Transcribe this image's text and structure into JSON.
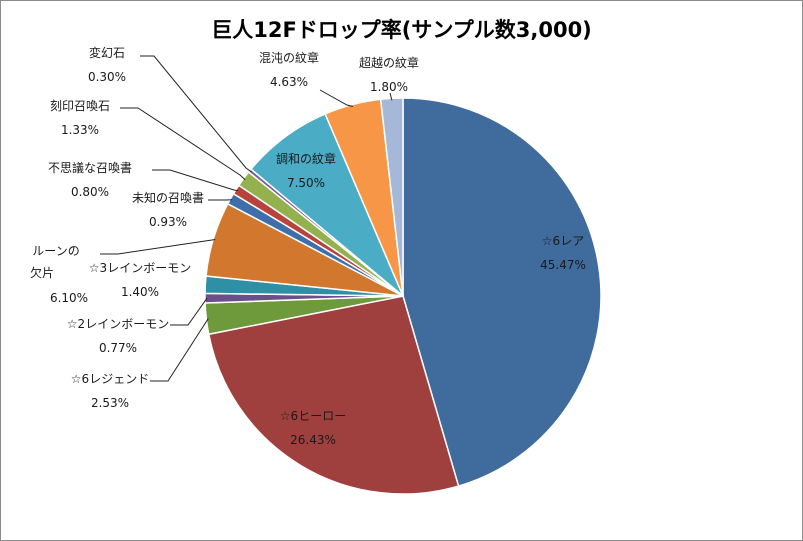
{
  "chart_data": {
    "type": "pie",
    "title": "巨人12Fドロップ率(サンプル数3,000)",
    "slices": [
      {
        "label": "☆6レア",
        "value": 45.47,
        "text": "45.47%",
        "color": "#3f6b9d"
      },
      {
        "label": "☆6ヒーロー",
        "value": 26.43,
        "text": "26.43%",
        "color": "#a0403e"
      },
      {
        "label": "☆6レジェンド",
        "value": 2.53,
        "text": "2.53%",
        "color": "#6e9a3b"
      },
      {
        "label": "☆2レインボーモン",
        "value": 0.77,
        "text": "0.77%",
        "color": "#6b4f8a"
      },
      {
        "label": "☆3レインボーモン",
        "value": 1.4,
        "text": "1.40%",
        "color": "#2f8fa5"
      },
      {
        "label": "ルーンの欠片",
        "value": 6.1,
        "text": "6.10%",
        "color": "#d2772e"
      },
      {
        "label": "未知の召喚書",
        "value": 0.93,
        "text": "0.93%",
        "color": "#3e6faa"
      },
      {
        "label": "不思議な召喚書",
        "value": 0.8,
        "text": "0.80%",
        "color": "#b8423c"
      },
      {
        "label": "刻印召喚石",
        "value": 1.33,
        "text": "1.33%",
        "color": "#93b14d"
      },
      {
        "label": "変幻石",
        "value": 0.3,
        "text": "0.30%",
        "color": "#7a5ca1"
      },
      {
        "label": "調和の紋章",
        "value": 7.5,
        "text": "7.50%",
        "color": "#4bacc6"
      },
      {
        "label": "混沌の紋章",
        "value": 4.63,
        "text": "4.63%",
        "color": "#f79646"
      },
      {
        "label": "超越の紋章",
        "value": 1.8,
        "text": "1.80%",
        "color": "#a6b8d8"
      }
    ]
  }
}
